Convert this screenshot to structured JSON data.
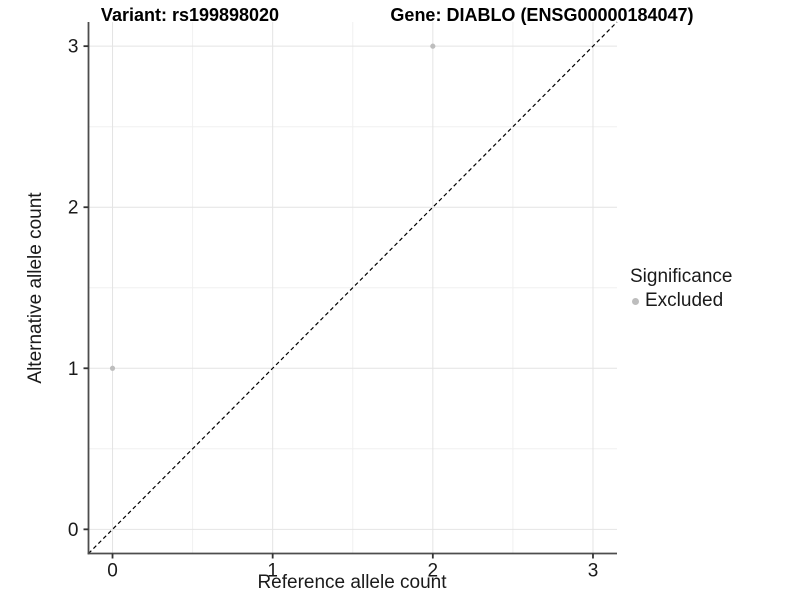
{
  "titles": {
    "variant": "Variant: rs199898020",
    "gene": "Gene: DIABLO (ENSG00000184047)"
  },
  "axes": {
    "x_label": "Reference allele count",
    "y_label": "Alternative allele count"
  },
  "legend": {
    "title": "Significance",
    "items": [
      {
        "label": "Excluded",
        "color": "#bdbdbd"
      }
    ]
  },
  "chart_data": {
    "type": "scatter",
    "title": "Variant: rs199898020 — Gene: DIABLO (ENSG00000184047)",
    "xlabel": "Reference allele count",
    "ylabel": "Alternative allele count",
    "xlim": [
      -0.15,
      3.15
    ],
    "ylim": [
      -0.15,
      3.15
    ],
    "x_ticks": [
      0,
      1,
      2,
      3
    ],
    "y_ticks": [
      0,
      1,
      2,
      3
    ],
    "x_minor": [
      0.5,
      1.5,
      2.5
    ],
    "y_minor": [
      0.5,
      1.5,
      2.5
    ],
    "grid": true,
    "legend_position": "right",
    "series": [
      {
        "name": "Excluded",
        "points": [
          {
            "x": 0,
            "y": 1
          },
          {
            "x": 2,
            "y": 3
          }
        ]
      }
    ],
    "colors": {
      "Excluded": "#bdbdbd"
    },
    "identity_line": {
      "style": "dashed",
      "from": [
        -0.15,
        -0.15
      ],
      "to": [
        3.15,
        3.15
      ],
      "color": "#000000"
    },
    "style": {
      "grid_major_color": "#e4e4e4",
      "grid_minor_color": "#f0f0f0",
      "axis_line_color": "#4d4d4d",
      "tick_color": "#333333",
      "point_radius": 2.6
    }
  }
}
